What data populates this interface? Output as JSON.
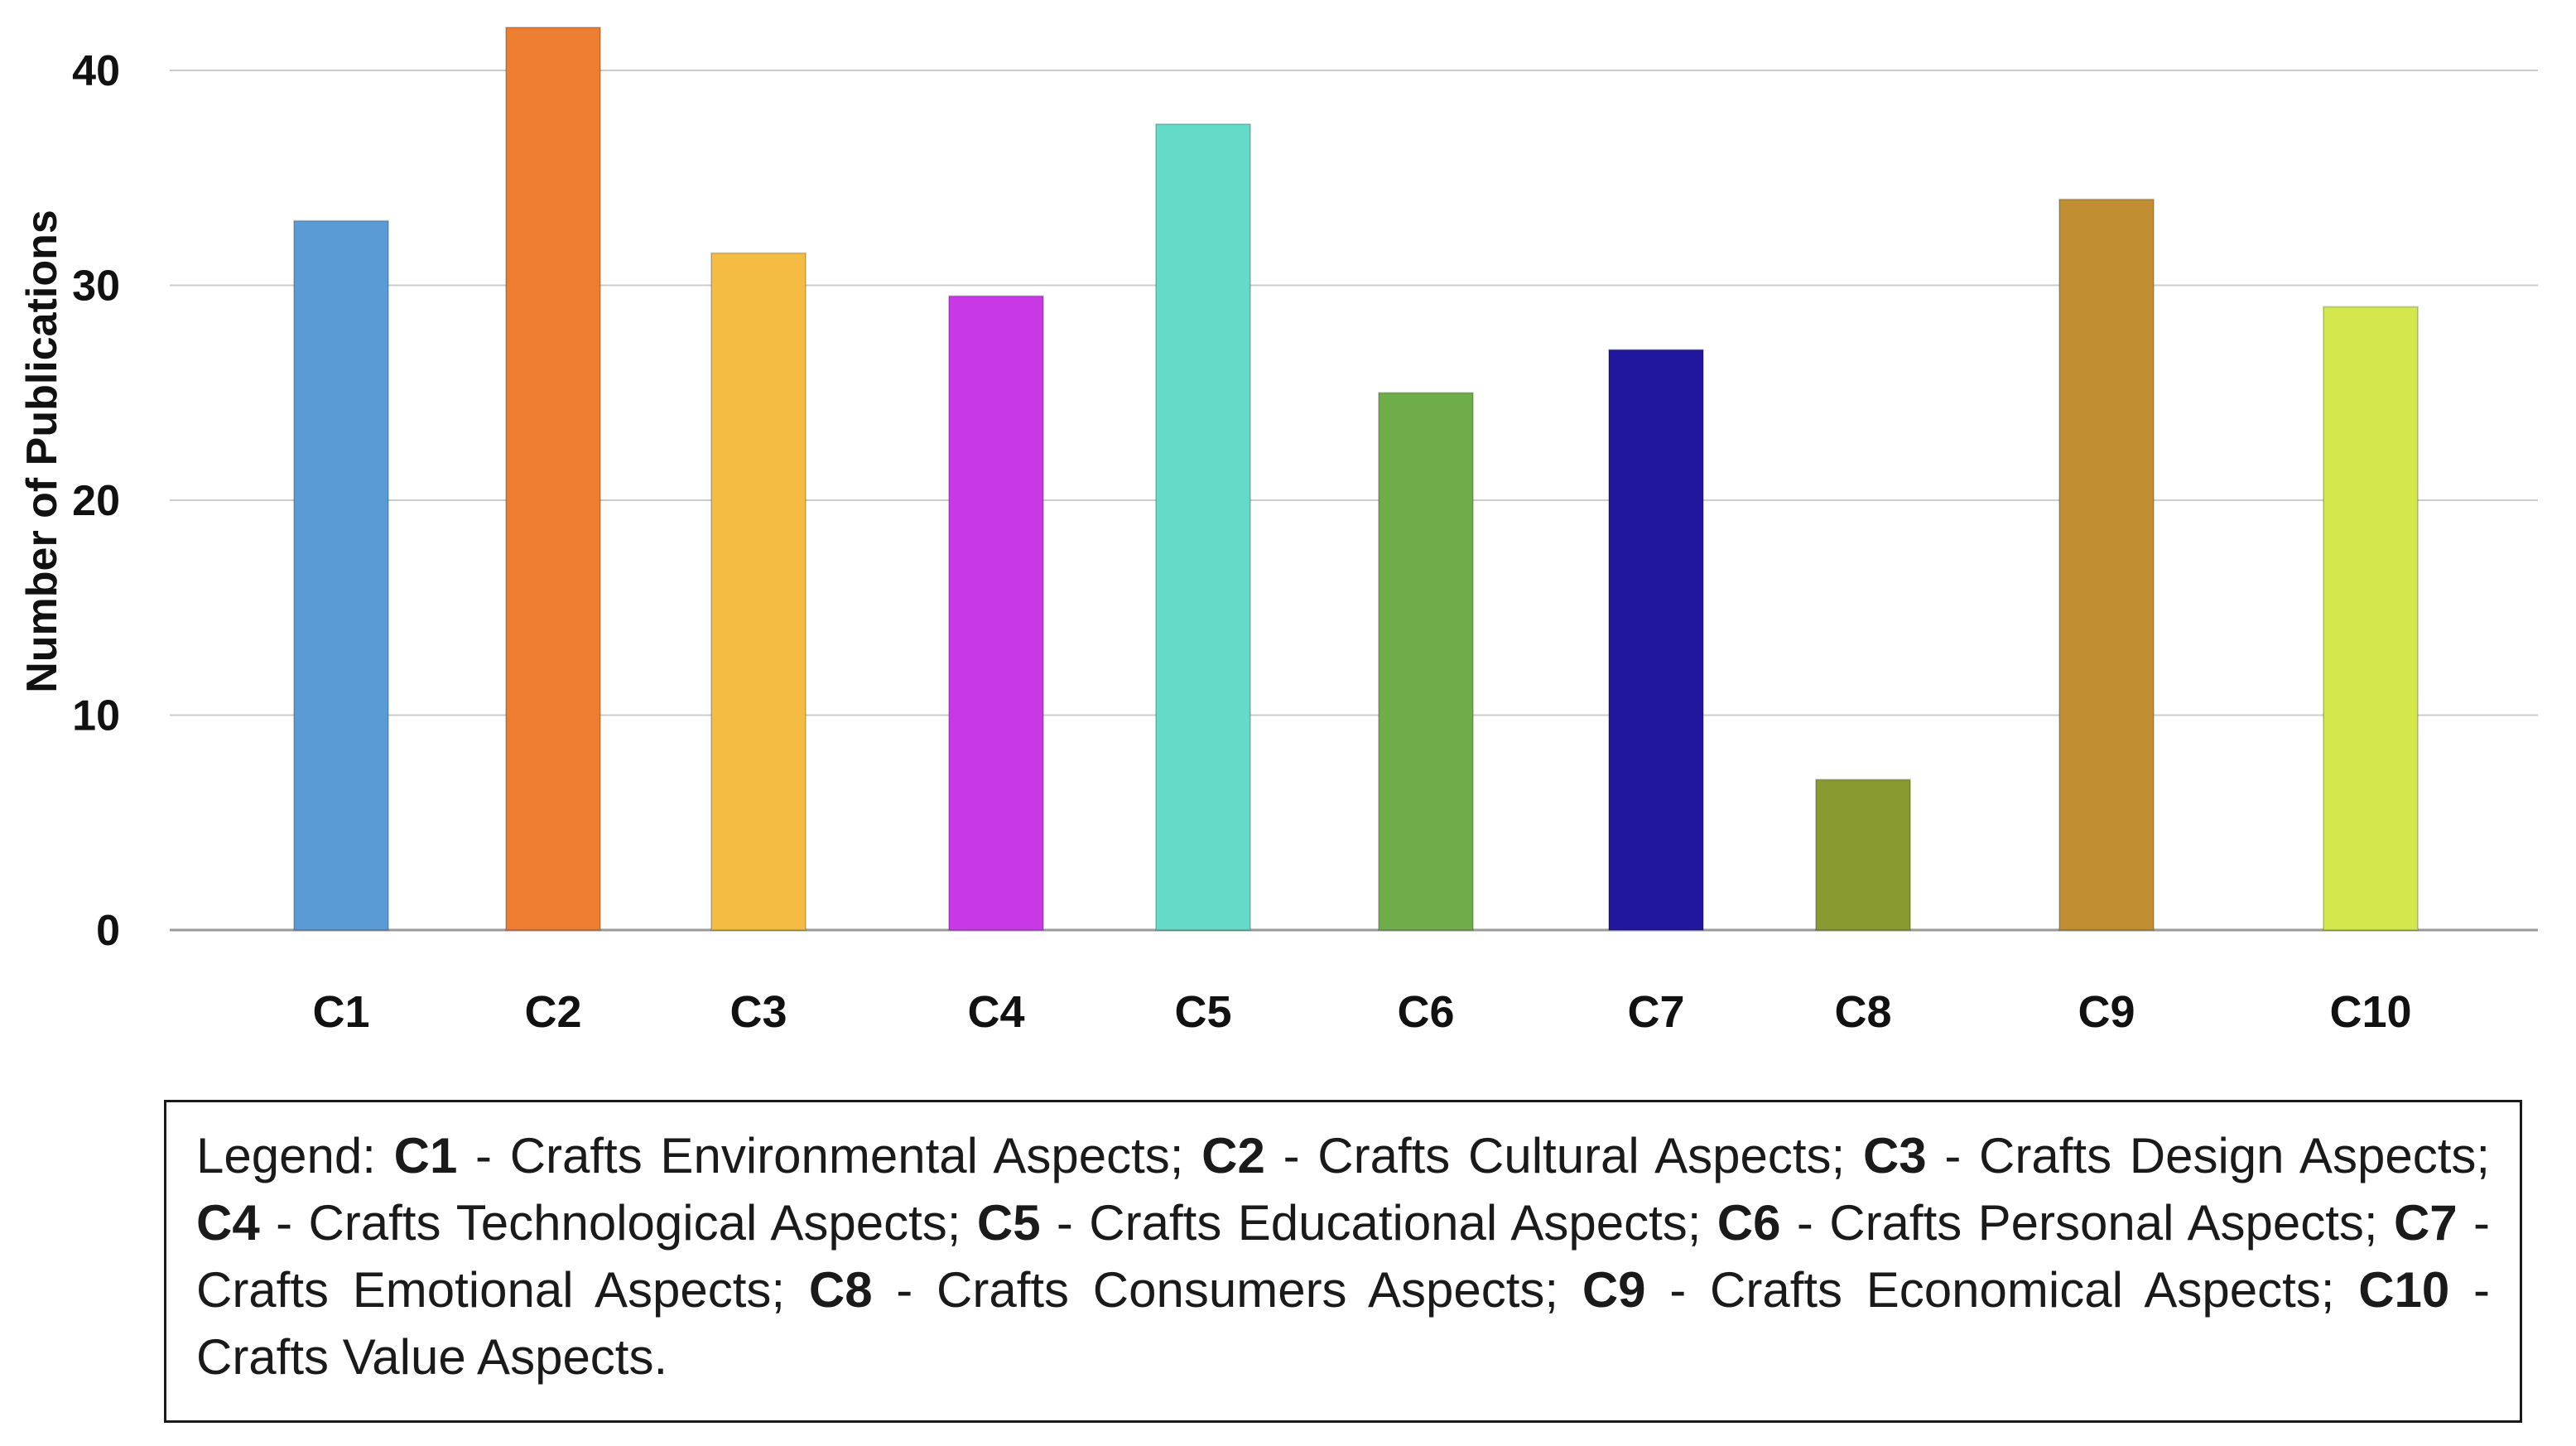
{
  "chart_data": {
    "type": "bar",
    "title": "",
    "xlabel": "",
    "ylabel": "Number of Publications",
    "ylim": [
      0,
      40
    ],
    "yticks": [
      0,
      10,
      20,
      30,
      40
    ],
    "grid": true,
    "categories": [
      "C1",
      "C2",
      "C3",
      "C4",
      "C5",
      "C6",
      "C7",
      "C8",
      "C9",
      "C10"
    ],
    "values": [
      33,
      42,
      31.5,
      29.5,
      37.5,
      25,
      27,
      7,
      34,
      29
    ],
    "colors": [
      "#5b9bd5",
      "#ed7d31",
      "#f4bc42",
      "#c838e4",
      "#64dbc8",
      "#6fac4a",
      "#21169e",
      "#889a30",
      "#c08f31",
      "#d4e74c"
    ]
  },
  "legend": {
    "prefix": "Legend:",
    "entries": [
      {
        "code": "C1",
        "text": "Crafts Environmental Aspects;"
      },
      {
        "code": "C2",
        "text": "Crafts Cultural Aspects;"
      },
      {
        "code": "C3",
        "text": "Crafts Design Aspects;"
      },
      {
        "code": "C4",
        "text": "Crafts Technological Aspects;"
      },
      {
        "code": "C5",
        "text": "Crafts Educational Aspects;"
      },
      {
        "code": "C6",
        "text": "Crafts Personal Aspects;"
      },
      {
        "code": "C7",
        "text": "Crafts Emotional Aspects;"
      },
      {
        "code": "C8",
        "text": "Crafts Consumers Aspects;"
      },
      {
        "code": "C9",
        "text": "Crafts Economical Aspects;"
      },
      {
        "code": "C10",
        "text": "Crafts Value Aspects."
      }
    ]
  }
}
